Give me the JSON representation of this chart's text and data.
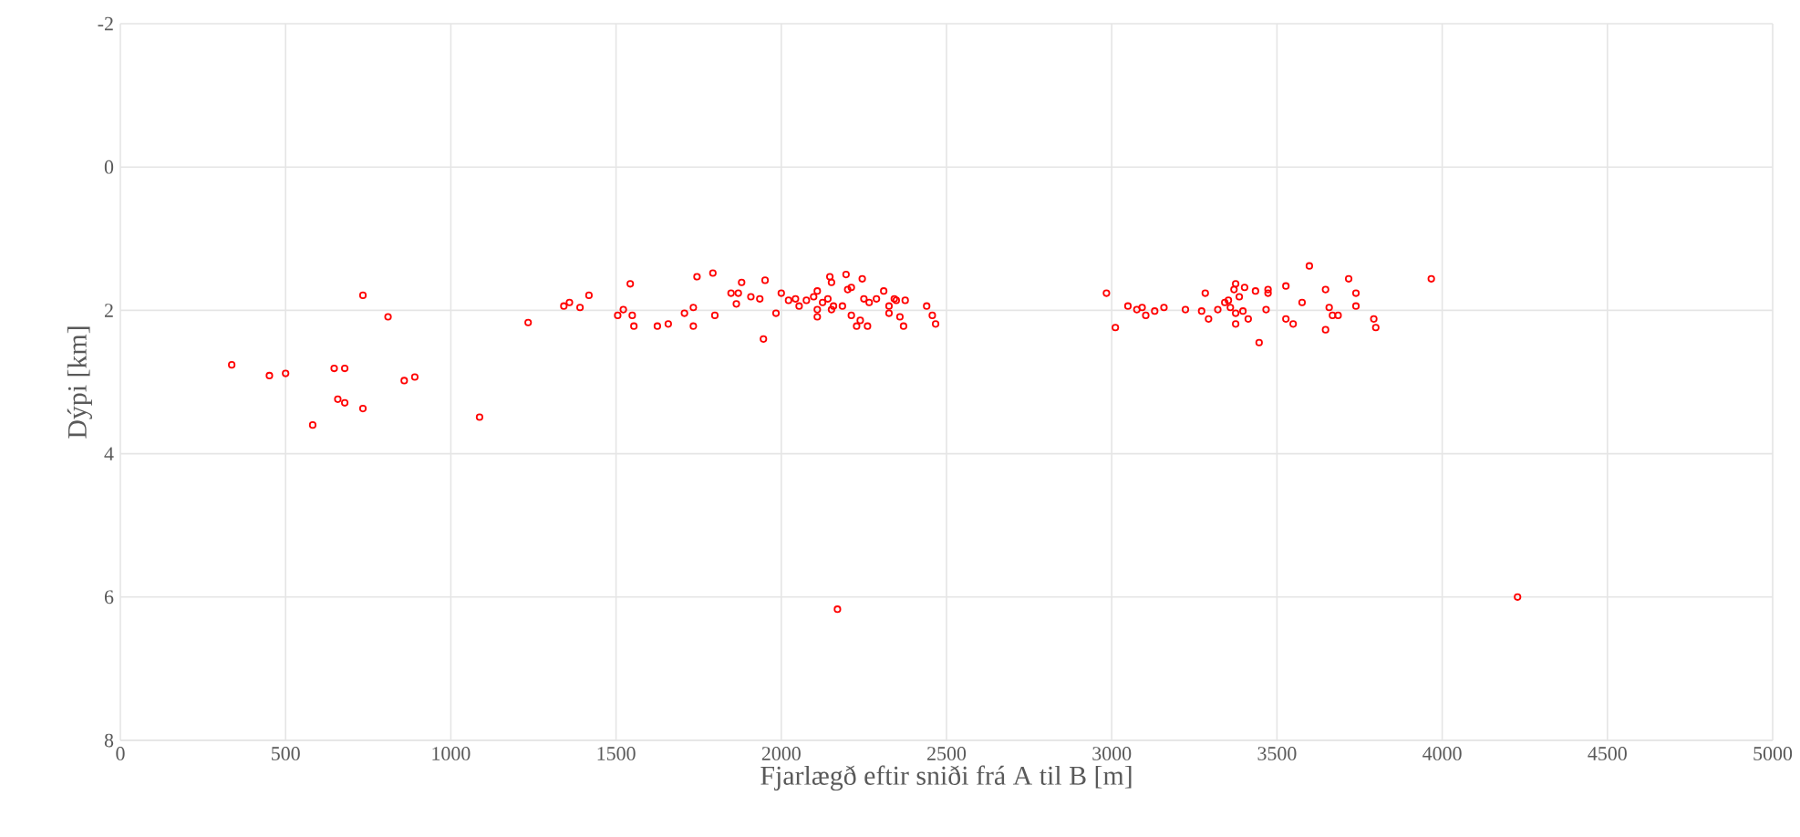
{
  "chart_data": {
    "type": "scatter",
    "xlabel": "Fjarlægð eftir sniði frá A til B [m]",
    "ylabel": "Dýpi [km]",
    "xlim": [
      0,
      5000
    ],
    "xticks": [
      0,
      500,
      1000,
      1500,
      2000,
      2500,
      3000,
      3500,
      4000,
      4500,
      5000
    ],
    "ylim": [
      8,
      -2
    ],
    "yticks": [
      -2,
      0,
      2,
      4,
      6,
      8
    ],
    "grid": true,
    "marker": "circle",
    "series": [
      {
        "color": "#ff0000",
        "x": [
          337,
          451,
          500,
          647,
          679,
          734,
          810,
          658,
          679,
          734,
          582,
          859,
          891,
          1087,
          1234,
          1342,
          1359,
          1391,
          1418,
          1543,
          1522,
          1505,
          1549,
          1554,
          1625,
          1658,
          1707,
          1734,
          1734,
          1745,
          1793,
          1799,
          1848,
          1870,
          1864,
          1880,
          1908,
          1935,
          1951,
          1946,
          1984,
          2000,
          2022,
          2043,
          2054,
          2076,
          2098,
          2109,
          2109,
          2109,
          2125,
          2147,
          2152,
          2141,
          2158,
          2152,
          2196,
          2201,
          2212,
          2185,
          2212,
          2228,
          2245,
          2261,
          2239,
          2250,
          2266,
          2288,
          2310,
          2326,
          2326,
          2342,
          2348,
          2375,
          2359,
          2370,
          2440,
          2457,
          2467,
          2170,
          2984,
          3011,
          3049,
          3076,
          3092,
          3103,
          3130,
          3158,
          3223,
          3272,
          3283,
          3293,
          3321,
          3342,
          3353,
          3359,
          3370,
          3375,
          3375,
          3375,
          3386,
          3402,
          3397,
          3413,
          3435,
          3446,
          3467,
          3473,
          3473,
          3527,
          3527,
          3549,
          3576,
          3598,
          3647,
          3647,
          3658,
          3668,
          3685,
          3717,
          3739,
          3739,
          3793,
          3799,
          3967,
          4228
        ],
        "values": [
          2.76,
          2.91,
          2.88,
          2.81,
          2.81,
          1.79,
          2.09,
          3.24,
          3.29,
          3.37,
          3.6,
          2.98,
          2.93,
          3.49,
          2.17,
          1.94,
          1.89,
          1.96,
          1.79,
          1.63,
          1.99,
          2.07,
          2.07,
          2.22,
          2.22,
          2.19,
          2.04,
          1.96,
          2.22,
          1.53,
          1.48,
          2.07,
          1.76,
          1.76,
          1.91,
          1.61,
          1.81,
          1.84,
          1.58,
          2.4,
          2.04,
          1.76,
          1.86,
          1.84,
          1.94,
          1.86,
          1.81,
          1.73,
          1.99,
          2.09,
          1.89,
          1.53,
          1.61,
          1.84,
          1.94,
          1.99,
          1.5,
          1.71,
          1.68,
          1.94,
          2.07,
          2.22,
          1.56,
          2.22,
          2.14,
          1.84,
          1.89,
          1.84,
          1.73,
          1.94,
          2.04,
          1.84,
          1.86,
          1.86,
          2.09,
          2.22,
          1.94,
          2.07,
          2.19,
          6.17,
          1.76,
          2.24,
          1.94,
          1.99,
          1.96,
          2.07,
          2.01,
          1.96,
          1.99,
          2.01,
          1.76,
          2.12,
          1.99,
          1.89,
          1.86,
          1.96,
          1.71,
          1.63,
          2.04,
          2.19,
          1.81,
          1.68,
          2.01,
          2.12,
          1.73,
          2.45,
          1.99,
          1.71,
          1.76,
          1.66,
          2.12,
          2.19,
          1.89,
          1.38,
          1.71,
          2.27,
          1.96,
          2.07,
          2.07,
          1.56,
          1.76,
          1.94,
          2.12,
          2.24,
          1.56,
          6.0
        ]
      }
    ]
  }
}
